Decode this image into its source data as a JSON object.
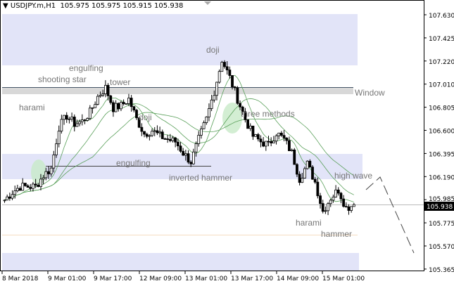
{
  "header": {
    "symbol": "USDJPY.m,H1",
    "ohlc": "105.975 105.975 105.915 105.938"
  },
  "price_axis": {
    "ticks": [
      "107.630",
      "107.425",
      "107.220",
      "107.010",
      "106.805",
      "106.600",
      "106.395",
      "106.190",
      "105.985",
      "105.775",
      "105.570",
      "105.365"
    ],
    "current": "105.938"
  },
  "time_axis": {
    "ticks": [
      "8 Mar 2018",
      "9 Mar 01:00",
      "9 Mar 17:00",
      "12 Mar 09:00",
      "13 Mar 01:00",
      "13 Mar 17:00",
      "14 Mar 09:00",
      "15 Mar 01:00"
    ]
  },
  "annotations": {
    "harami1": "harami",
    "shooting_star": "shooting star",
    "engulfing1": "engulfing",
    "tower": "tower",
    "doji_top": "doji",
    "doji2": "doji",
    "engulfing2": "engulfing",
    "inverted_hammer": "inverted hammer",
    "three_methods": "three methods",
    "window": "Window",
    "high_wave": "high wave",
    "harami2": "harami",
    "hammer": "hammer"
  },
  "colors": {
    "zone": "#e2e4f8",
    "ma": "#5aa05a",
    "highlight": "#c8eac8"
  },
  "chart_data": {
    "type": "candlestick",
    "closes": [
      105.98,
      106.05,
      106.1,
      106.1,
      106.1,
      106.2,
      106.26,
      106.63,
      106.73,
      106.66,
      106.68,
      106.76,
      106.9,
      106.98,
      106.8,
      106.82,
      106.88,
      106.7,
      106.57,
      106.6,
      106.55,
      106.52,
      106.5,
      106.4,
      106.32,
      106.52,
      106.7,
      106.95,
      107.23,
      107.07,
      106.88,
      106.7,
      106.55,
      106.5,
      106.47,
      106.58,
      106.52,
      106.4,
      106.17,
      106.3,
      106.14,
      105.88,
      106.0,
      106.07,
      105.91,
      105.94
    ]
  }
}
